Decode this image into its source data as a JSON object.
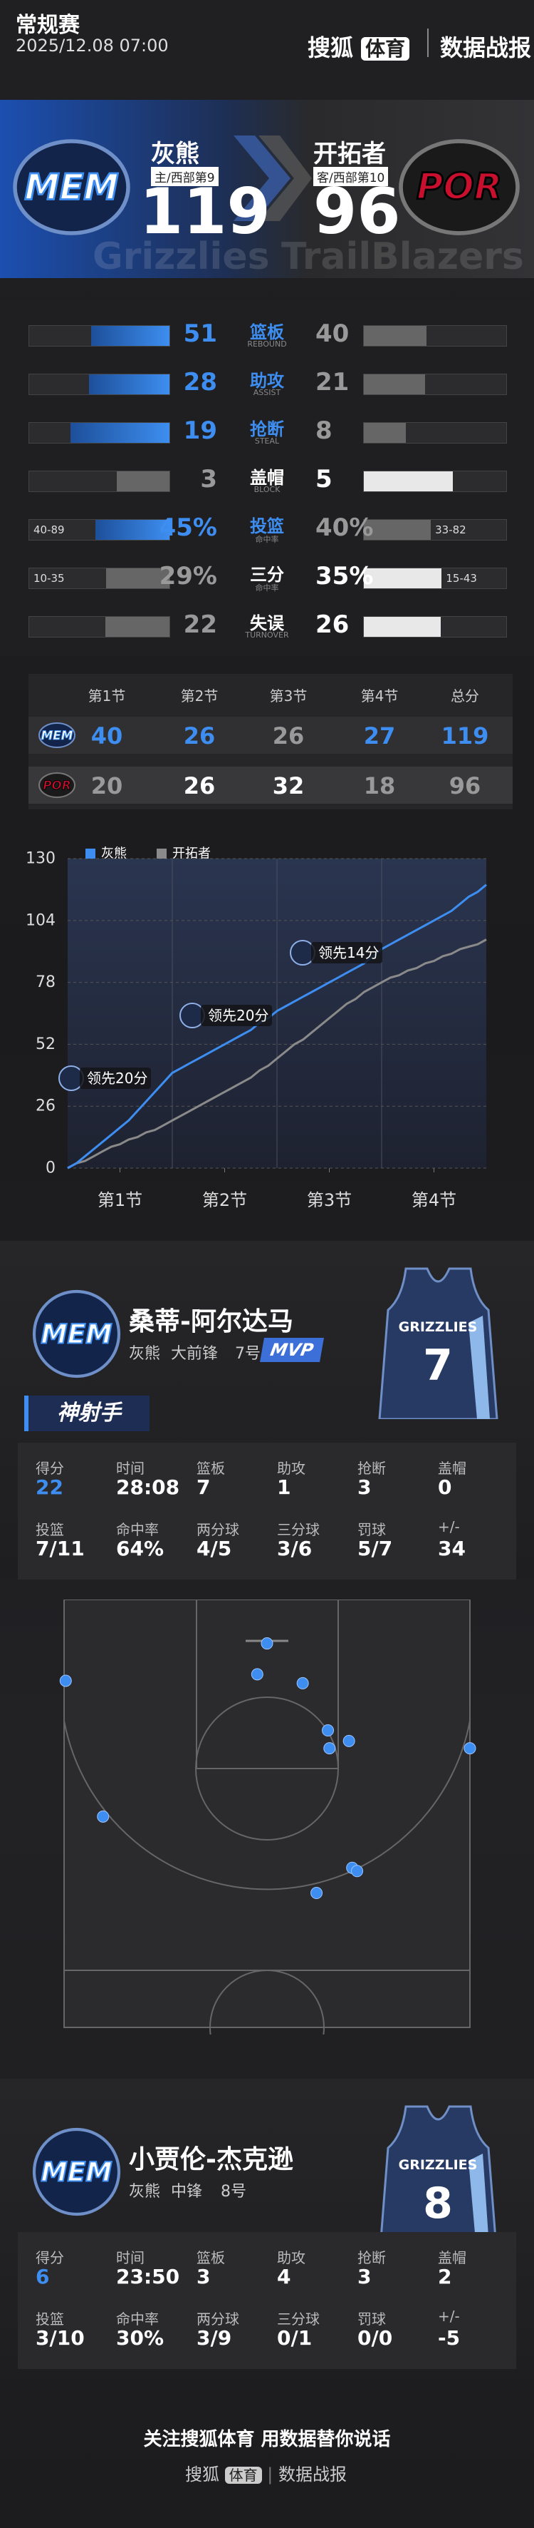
{
  "header": {
    "game_type": "常规赛",
    "datetime": "2025/12.08 07:00",
    "brand": "搜狐",
    "brand_badge": "体育",
    "section": "数据战报"
  },
  "scoreboard": {
    "home": {
      "logo_text": "MEM",
      "name": "灰熊",
      "rank": "主/西部第9",
      "score": 119
    },
    "away": {
      "logo_text": "POR",
      "name": "开拓者",
      "rank": "客/西部第10",
      "score": 96
    },
    "watermark": [
      "Grizzlies",
      "TrailBlazers"
    ]
  },
  "team_stats": [
    {
      "label": "篮板",
      "sublabel": "REBOUND",
      "home": 51,
      "away": 40
    },
    {
      "label": "助攻",
      "sublabel": "ASSIST",
      "home": 28,
      "away": 21
    },
    {
      "label": "抢断",
      "sublabel": "STEAL",
      "home": 19,
      "away": 8
    },
    {
      "label": "盖帽",
      "sublabel": "BLOCK",
      "home": 3,
      "away": 5
    },
    {
      "label": "投篮",
      "sublabel": "命中率",
      "home": 45,
      "home_label": "45%",
      "away": 40,
      "away_label": "40%",
      "home_detail": "40-89",
      "away_detail": "33-82"
    },
    {
      "label": "三分",
      "sublabel": "命中率",
      "home": 29,
      "home_label": "29%",
      "away": 35,
      "away_label": "35%",
      "home_detail": "10-35",
      "away_detail": "15-43"
    },
    {
      "label": "失误",
      "sublabel": "TURNOVER",
      "home": 22,
      "away": 26
    }
  ],
  "quarters": {
    "headers": [
      "第1节",
      "第2节",
      "第3节",
      "第4节",
      "总分"
    ],
    "rows": [
      {
        "logo_text": "MEM",
        "scores": [
          40,
          26,
          26,
          27,
          119
        ]
      },
      {
        "logo_text": "POR",
        "scores": [
          20,
          26,
          32,
          18,
          96
        ]
      }
    ]
  },
  "chart_data": {
    "type": "line",
    "x": [
      0,
      1,
      2,
      3,
      4,
      5,
      6,
      7,
      8,
      9,
      10,
      11,
      12,
      13,
      14,
      15,
      16,
      17,
      18,
      19,
      20,
      21,
      22,
      23,
      24,
      25,
      26,
      27,
      28,
      29,
      30,
      31,
      32,
      33,
      34,
      35,
      36,
      37,
      38,
      39,
      40,
      41,
      42,
      43,
      44,
      45,
      46,
      47,
      48
    ],
    "series": [
      {
        "name": "灰熊",
        "color": "#3d8ef0",
        "values": [
          0,
          2,
          5,
          8,
          11,
          14,
          17,
          20,
          24,
          28,
          32,
          36,
          40,
          42,
          44,
          46,
          48,
          50,
          52,
          54,
          56,
          58,
          61,
          63,
          66,
          68,
          70,
          72,
          74,
          76,
          78,
          80,
          82,
          84,
          86,
          89,
          92,
          94,
          96,
          98,
          100,
          102,
          104,
          106,
          108,
          111,
          114,
          116,
          119
        ]
      },
      {
        "name": "开拓者",
        "color": "#8a8a8a",
        "values": [
          0,
          2,
          3,
          5,
          7,
          9,
          10,
          12,
          13,
          15,
          16,
          18,
          20,
          22,
          24,
          26,
          28,
          30,
          32,
          34,
          36,
          38,
          41,
          43,
          46,
          49,
          52,
          54,
          57,
          60,
          63,
          66,
          69,
          71,
          74,
          76,
          78,
          80,
          81,
          83,
          84,
          86,
          87,
          89,
          90,
          92,
          93,
          94,
          96
        ]
      }
    ],
    "xlim": [
      0,
      48
    ],
    "xticks": [
      {
        "value": 6,
        "label": "第1节"
      },
      {
        "value": 18,
        "label": "第2节"
      },
      {
        "value": 30,
        "label": "第3节"
      },
      {
        "value": 42,
        "label": "第4节"
      }
    ],
    "ylim": [
      0,
      130
    ],
    "yticks": [
      0,
      26,
      52,
      78,
      104,
      130
    ],
    "grid": true,
    "annotations": [
      "领先20分",
      "领先20分",
      "领先14分"
    ]
  },
  "players": [
    {
      "logo_text": "MEM",
      "name": "桑蒂-阿尔达马",
      "team": "灰熊",
      "position": "大前锋",
      "number_label": "7号",
      "badge": "MVP",
      "jersey_text": "GRIZZLIES",
      "jersey_number": "7",
      "tag": "神射手",
      "stats": [
        {
          "label": "得分",
          "value": 22
        },
        {
          "label": "时间",
          "value": "28:08"
        },
        {
          "label": "篮板",
          "value": 7
        },
        {
          "label": "助攻",
          "value": 1
        },
        {
          "label": "抢断",
          "value": 3
        },
        {
          "label": "盖帽",
          "value": 0
        },
        {
          "label": "投篮",
          "value": "7/11"
        },
        {
          "label": "命中率",
          "value": "64%"
        },
        {
          "label": "两分球",
          "value": "4/5"
        },
        {
          "label": "三分球",
          "value": "3/6"
        },
        {
          "label": "罚球",
          "value": "5/7"
        },
        {
          "label": "+/-",
          "value": 34
        }
      ],
      "shots": [
        {
          "x": 0.2,
          "y": 10.0
        },
        {
          "x": 25.0,
          "y": 5.4
        },
        {
          "x": 23.8,
          "y": 9.2
        },
        {
          "x": 29.4,
          "y": 10.3
        },
        {
          "x": 32.5,
          "y": 16.1
        },
        {
          "x": 32.7,
          "y": 18.3
        },
        {
          "x": 35.1,
          "y": 17.4
        },
        {
          "x": 50.0,
          "y": 18.3
        },
        {
          "x": 4.8,
          "y": 26.7
        },
        {
          "x": 31.1,
          "y": 36.1
        },
        {
          "x": 35.5,
          "y": 33.0
        },
        {
          "x": 36.1,
          "y": 33.4
        }
      ]
    },
    {
      "logo_text": "MEM",
      "name": "小贾伦-杰克逊",
      "team": "灰熊",
      "position": "中锋",
      "number_label": "8号",
      "jersey_text": "GRIZZLIES",
      "jersey_number": "8",
      "stats": [
        {
          "label": "得分",
          "value": 6
        },
        {
          "label": "时间",
          "value": "23:50"
        },
        {
          "label": "篮板",
          "value": 3
        },
        {
          "label": "助攻",
          "value": 4
        },
        {
          "label": "抢断",
          "value": 3
        },
        {
          "label": "盖帽",
          "value": 2
        },
        {
          "label": "投篮",
          "value": "3/10"
        },
        {
          "label": "命中率",
          "value": "30%"
        },
        {
          "label": "两分球",
          "value": "3/9"
        },
        {
          "label": "三分球",
          "value": "0/1"
        },
        {
          "label": "罚球",
          "value": "0/0"
        },
        {
          "label": "+/-",
          "value": -5
        }
      ]
    }
  ],
  "footer": {
    "slogan": "关注搜狐体育 用数据替你说话",
    "brand": "搜狐",
    "brand_badge": "体育",
    "section": "数据战报"
  }
}
